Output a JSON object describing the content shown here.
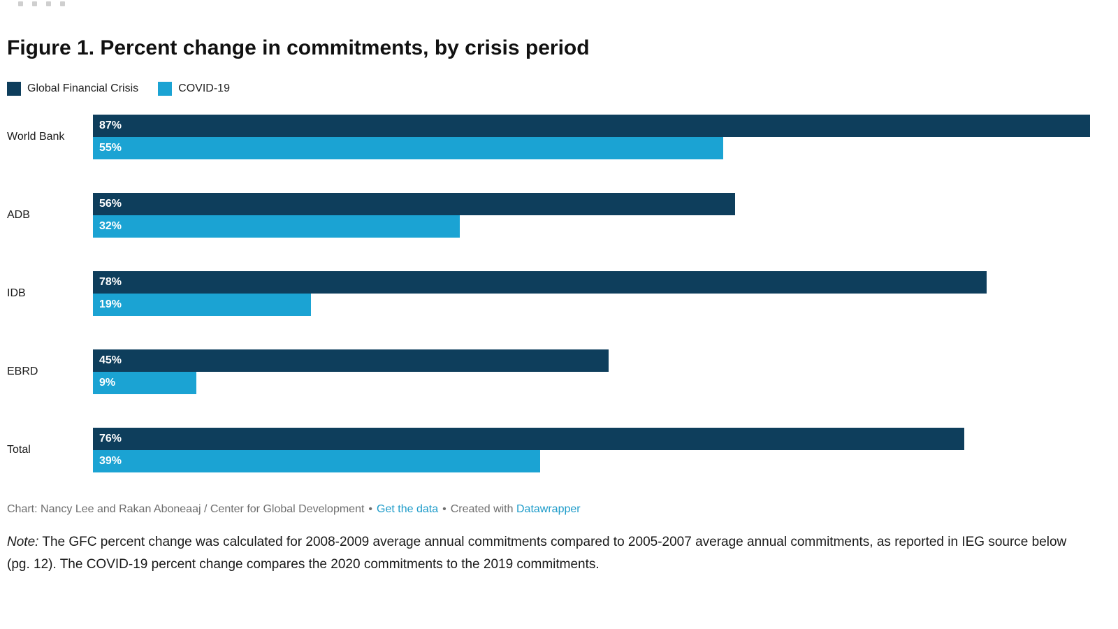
{
  "page": {
    "title": "Figure 1. Percent change in commitments, by crisis period"
  },
  "legend": [
    {
      "label": "Global Financial Crisis",
      "color": "#0e3e5c"
    },
    {
      "label": "COVID-19",
      "color": "#1ba3d3"
    }
  ],
  "chart_data": {
    "type": "bar",
    "orientation": "horizontal",
    "title": "Figure 1. Percent change in commitments, by crisis period",
    "categories": [
      "World Bank",
      "ADB",
      "IDB",
      "EBRD",
      "Total"
    ],
    "series": [
      {
        "name": "Global Financial Crisis",
        "color": "#0e3e5c",
        "values": [
          87,
          56,
          78,
          45,
          76
        ]
      },
      {
        "name": "COVID-19",
        "color": "#1ba3d3",
        "values": [
          55,
          32,
          19,
          9,
          39
        ]
      }
    ],
    "value_suffix": "%",
    "value_labels_position": "inside-start",
    "xlim": [
      0,
      87
    ],
    "grid": false,
    "axis_ticks_visible": false,
    "legend_position": "top-left"
  },
  "footer": {
    "credit": "Chart: Nancy Lee and Rakan Aboneaaj / Center for Global Development",
    "separator": "•",
    "get_data_label": "Get the data",
    "created_with_label": "Created with",
    "datawrapper_label": "Datawrapper",
    "link_color": "#1d9bc9"
  },
  "note": {
    "label": "Note:",
    "text": "The GFC percent change was calculated for 2008-2009 average annual commitments compared to 2005-2007 average annual commitments, as reported in IEG source below (pg. 12). The COVID-19 percent change compares the 2020 commitments to the 2019 commitments."
  }
}
